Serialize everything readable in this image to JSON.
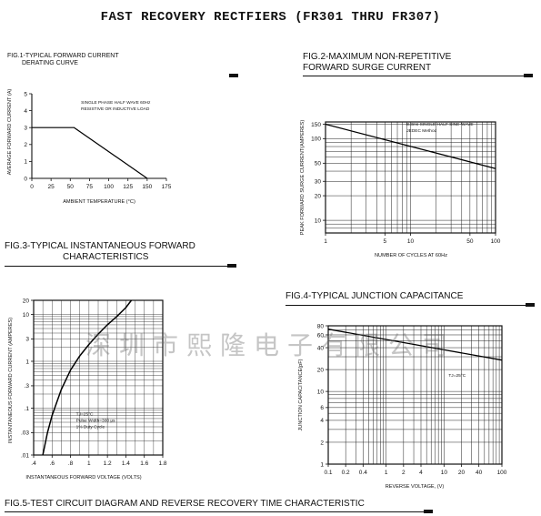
{
  "page_title": "FAST RECOVERY RECTFIERS (FR301 THRU FR307)",
  "watermark": "深圳市熙隆电子有限公司",
  "fig5": {
    "caption": "FIG.5-TEST CIRCUIT DIAGRAM AND REVERSE RECOVERY TIME CHARACTERISTIC"
  },
  "chart_data": [
    {
      "id": "fig1",
      "type": "line",
      "title_line1": "FIG.1-TYPICAL FORWARD CURRENT",
      "title_line2": "DERATING CURVE",
      "xlabel": "AMBIENT TEMPERATURE (°C)",
      "ylabel": "AVERAGE FORWARD CURRENT (A)",
      "xscale": "linear",
      "yscale": "linear",
      "xlim": [
        0,
        175
      ],
      "ylim": [
        0,
        5
      ],
      "xticks": [
        0,
        25,
        50,
        75,
        100,
        125,
        150,
        175
      ],
      "yticks": [
        0,
        1,
        2,
        3,
        4,
        5
      ],
      "xgrid": [],
      "ygrid": [],
      "annotation_lines": [
        "SINGLE PHASE HALF WAVE 60Hz",
        "RESISTIVE OR INDUCTIVE LOAD"
      ],
      "annotation_at": [
        64,
        4.4
      ],
      "series": [
        {
          "x": [
            0,
            55,
            150
          ],
          "y": [
            3,
            3,
            0
          ]
        }
      ]
    },
    {
      "id": "fig2",
      "type": "line",
      "title_line1": "FIG.2-MAXIMUM NON-REPETITIVE",
      "title_line2": "FORWARD SURGE CURRENT",
      "xlabel": "NUMBER OF CYCLES AT 60Hz",
      "ylabel": "PEAK FORWARD SURGE CURRENT(AMPERES)",
      "xscale": "log",
      "yscale": "log",
      "xlim": [
        1,
        100
      ],
      "ylim": [
        7,
        160
      ],
      "xticks": [
        1,
        5,
        10,
        50,
        100
      ],
      "yticks": [
        10,
        20,
        30,
        50,
        100,
        150
      ],
      "xgrid": [
        2,
        3,
        4,
        5,
        6,
        7,
        8,
        9,
        10,
        20,
        30,
        40,
        50,
        60,
        70,
        80,
        90
      ],
      "ygrid": [
        8,
        9,
        10,
        20,
        30,
        40,
        50,
        60,
        70,
        80,
        90,
        100,
        150
      ],
      "annotation_lines": [
        "8.3ms SINGLE HALF SINE-WAVE",
        "JEDEC Method"
      ],
      "annotation_at": [
        9,
        145
      ],
      "series": [
        {
          "x": [
            1,
            100
          ],
          "y": [
            150,
            43
          ]
        }
      ]
    },
    {
      "id": "fig3",
      "type": "line",
      "title_line1": "FIG.3-TYPICAL INSTANTANEOUS FORWARD",
      "title_line2": "CHARACTERISTICS",
      "xlabel": "INSTANTANEOUS FORWARD VOLTAGE (VOLTS)",
      "ylabel": "INSTANTANEOUS FORWARD CURRENT (AMPERES)",
      "xscale": "linear",
      "yscale": "log",
      "xlim": [
        0.4,
        1.8
      ],
      "ylim": [
        0.01,
        20
      ],
      "xticks": [
        0.4,
        0.6,
        0.8,
        1.0,
        1.2,
        1.4,
        1.6,
        1.8
      ],
      "xtick_labels": [
        ".4",
        ".6",
        ".8",
        "1",
        "1.2",
        "1.4",
        "1.6",
        "1.8"
      ],
      "yticks": [
        0.01,
        0.03,
        0.1,
        0.3,
        1,
        3,
        10,
        20
      ],
      "ytick_labels": [
        ".01",
        ".03",
        ".1",
        ".3",
        "1",
        "3",
        "10",
        "20"
      ],
      "xgrid": [
        0.5,
        0.6,
        0.7,
        0.8,
        0.9,
        1.0,
        1.1,
        1.2,
        1.3,
        1.4,
        1.5,
        1.6,
        1.7
      ],
      "ygrid": [
        0.02,
        0.03,
        0.04,
        0.05,
        0.06,
        0.07,
        0.08,
        0.09,
        0.1,
        0.2,
        0.3,
        0.4,
        0.5,
        0.6,
        0.7,
        0.8,
        0.9,
        1,
        2,
        3,
        4,
        5,
        6,
        7,
        8,
        9,
        10
      ],
      "annotation_lines": [
        "TJ=25°C",
        "Pulse Width=300 μs",
        "1% Duty Cycle"
      ],
      "annotation_at": [
        0.86,
        0.07
      ],
      "series": [
        {
          "x": [
            0.5,
            0.55,
            0.6,
            0.7,
            0.8,
            0.9,
            1.0,
            1.1,
            1.2,
            1.3,
            1.4,
            1.46
          ],
          "y": [
            0.01,
            0.03,
            0.07,
            0.25,
            0.65,
            1.3,
            2.3,
            3.8,
            6,
            9,
            14,
            20
          ]
        }
      ]
    },
    {
      "id": "fig4",
      "type": "line",
      "title_line1": "FIG.4-TYPICAL JUNCTION CAPACITANCE",
      "title_line2": "",
      "xlabel": "REVERSE VOLTAGE, (V)",
      "ylabel": "JUNCTION CAPACITANCE(pF)",
      "xscale": "log",
      "yscale": "log",
      "xlim": [
        0.1,
        100
      ],
      "ylim": [
        1,
        80
      ],
      "xticks": [
        0.1,
        0.2,
        0.4,
        1,
        2,
        4,
        10,
        20,
        40,
        100
      ],
      "yticks": [
        1,
        2,
        4,
        6,
        10,
        20,
        40,
        60,
        80
      ],
      "xgrid": [
        0.2,
        0.3,
        0.4,
        0.5,
        0.6,
        0.7,
        0.8,
        0.9,
        1,
        2,
        3,
        4,
        5,
        6,
        7,
        8,
        9,
        10,
        20,
        30,
        40,
        50,
        60,
        70,
        80,
        90
      ],
      "ygrid": [
        2,
        3,
        4,
        5,
        6,
        7,
        8,
        9,
        10,
        20,
        30,
        40,
        50,
        60,
        70
      ],
      "annotation_lines": [
        "TJ=25°C"
      ],
      "annotation_at": [
        12,
        16
      ],
      "series": [
        {
          "x": [
            0.1,
            100
          ],
          "y": [
            72,
            27
          ]
        }
      ]
    }
  ]
}
